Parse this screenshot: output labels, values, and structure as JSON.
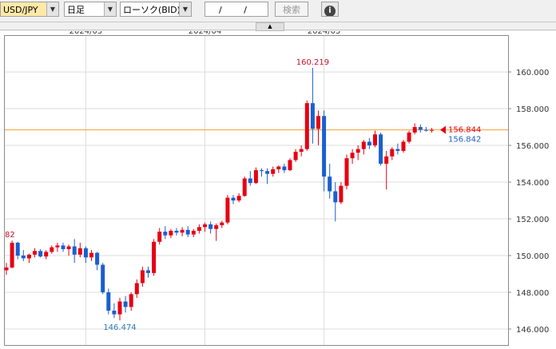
{
  "toolbar": {
    "symbol": "USD/JPY",
    "period": "日足",
    "chart_kind": "ローソク(BID)",
    "date": "/ /",
    "search": "検索",
    "info": "i"
  },
  "chart_data": {
    "type": "candlestick",
    "categories": [
      null,
      null,
      null,
      null,
      null,
      null,
      null,
      null,
      null,
      null,
      null,
      null,
      null,
      null,
      "2024/03",
      null,
      null,
      null,
      null,
      null,
      null,
      null,
      null,
      null,
      null,
      null,
      null,
      null,
      null,
      null,
      null,
      null,
      null,
      null,
      null,
      "2024/04",
      null,
      null,
      null,
      null,
      null,
      null,
      null,
      null,
      null,
      null,
      null,
      null,
      null,
      null,
      null,
      null,
      null,
      null,
      null,
      null,
      "2024/05",
      null,
      null,
      null,
      null,
      null,
      null,
      null,
      null,
      null,
      null,
      null,
      null,
      null,
      null,
      null,
      null,
      null,
      null,
      null
    ],
    "open": [
      149.2,
      149.35,
      150.7,
      150.0,
      149.85,
      150.05,
      150.25,
      149.95,
      150.2,
      150.45,
      150.55,
      150.35,
      150.5,
      150.05,
      150.4,
      149.9,
      150.15,
      149.5,
      148.0,
      147.0,
      146.8,
      147.5,
      147.2,
      147.9,
      148.5,
      149.2,
      149.05,
      150.75,
      151.3,
      151.1,
      151.35,
      151.25,
      151.4,
      151.15,
      151.35,
      151.55,
      151.7,
      151.45,
      151.65,
      151.8,
      153.15,
      153.0,
      153.25,
      154.2,
      153.95,
      154.65,
      154.6,
      154.45,
      154.7,
      154.85,
      154.65,
      155.2,
      155.65,
      155.8,
      158.3,
      156.9,
      157.6,
      154.3,
      153.5,
      152.9,
      153.8,
      155.3,
      155.6,
      155.8,
      156.2,
      156.0,
      156.6,
      155.0,
      155.4,
      155.8,
      155.7,
      156.2,
      156.7,
      157.0,
      156.85,
      156.8
    ],
    "high": [
      149.6,
      150.82,
      150.75,
      150.3,
      150.1,
      150.4,
      150.35,
      150.3,
      150.55,
      150.7,
      150.7,
      150.6,
      150.9,
      150.7,
      150.5,
      150.3,
      150.2,
      149.6,
      148.2,
      147.4,
      147.7,
      147.8,
      148.0,
      148.7,
      149.4,
      149.4,
      150.9,
      151.5,
      151.6,
      151.45,
      151.5,
      151.55,
      151.6,
      151.45,
      151.7,
      151.8,
      151.85,
      151.75,
      151.9,
      153.3,
      153.3,
      153.4,
      154.3,
      154.6,
      154.8,
      154.75,
      154.75,
      154.85,
      154.9,
      155.0,
      155.3,
      155.8,
      156.0,
      158.45,
      160.219,
      157.9,
      157.9,
      155.0,
      154.0,
      154.0,
      155.5,
      155.8,
      156.0,
      156.3,
      156.4,
      156.8,
      156.7,
      155.7,
      155.9,
      156.1,
      156.3,
      156.8,
      157.2,
      157.15,
      157.0,
      156.95
    ],
    "low": [
      148.95,
      149.3,
      149.8,
      149.7,
      149.6,
      149.9,
      149.9,
      149.8,
      150.1,
      150.2,
      150.2,
      150.0,
      149.6,
      149.9,
      149.6,
      149.7,
      149.2,
      147.9,
      146.8,
      146.6,
      146.474,
      146.9,
      147.0,
      147.7,
      148.3,
      148.8,
      148.9,
      150.6,
      150.9,
      150.95,
      151.1,
      151.05,
      151.0,
      151.0,
      151.2,
      151.3,
      151.2,
      150.8,
      151.5,
      151.7,
      152.8,
      152.9,
      153.2,
      153.8,
      153.9,
      154.3,
      153.9,
      154.3,
      154.5,
      154.5,
      154.6,
      155.1,
      155.4,
      155.7,
      156.1,
      156.0,
      153.5,
      153.1,
      151.86,
      152.8,
      153.6,
      155.0,
      155.2,
      155.5,
      155.8,
      155.9,
      154.9,
      153.6,
      155.2,
      155.5,
      155.6,
      156.1,
      156.6,
      156.7,
      156.75,
      156.7
    ],
    "close": [
      149.35,
      150.7,
      150.0,
      149.85,
      150.05,
      150.25,
      149.95,
      150.2,
      150.45,
      150.55,
      150.35,
      150.5,
      150.05,
      150.4,
      149.9,
      150.15,
      149.5,
      148.0,
      147.0,
      146.8,
      147.5,
      147.2,
      147.9,
      148.5,
      149.2,
      149.05,
      150.75,
      151.3,
      151.1,
      151.35,
      151.25,
      151.4,
      151.15,
      151.35,
      151.55,
      151.7,
      151.45,
      151.65,
      151.8,
      153.15,
      153.0,
      153.25,
      154.2,
      153.95,
      154.65,
      154.6,
      154.45,
      154.7,
      154.85,
      154.65,
      155.2,
      155.65,
      155.8,
      158.3,
      156.9,
      157.6,
      154.3,
      153.5,
      152.9,
      153.8,
      155.3,
      155.6,
      155.8,
      156.2,
      156.0,
      156.6,
      155.0,
      155.4,
      155.8,
      155.7,
      156.2,
      156.7,
      157.0,
      156.85,
      156.8,
      156.844
    ],
    "high_labels": [
      null,
      "82",
      null,
      null,
      null,
      null,
      null,
      null,
      null,
      null,
      null,
      null,
      null,
      null,
      null,
      null,
      null,
      null,
      null,
      null,
      null,
      null,
      null,
      null,
      null,
      null,
      null,
      null,
      null,
      null,
      null,
      null,
      null,
      null,
      null,
      null,
      null,
      null,
      null,
      null,
      null,
      null,
      null,
      null,
      null,
      null,
      null,
      null,
      null,
      null,
      null,
      null,
      null,
      null,
      "160.219",
      null,
      null,
      null,
      null,
      null,
      null,
      null,
      null,
      null,
      null,
      null,
      null,
      null,
      null,
      null,
      null,
      null,
      null,
      null,
      null,
      null
    ],
    "up_color": "#e60012",
    "down_color": "#1a5fd0",
    "ylim": [
      145.13,
      161.96
    ],
    "yticks": [
      {
        "value": 146,
        "label": "146.000"
      },
      {
        "value": 148,
        "label": "148.000"
      },
      {
        "value": 150,
        "label": "150.000"
      },
      {
        "value": 152,
        "label": "152.000"
      },
      {
        "value": 154,
        "label": "154.000"
      },
      {
        "value": 156,
        "label": "156.000"
      },
      {
        "value": 158,
        "label": "158.000"
      },
      {
        "value": 160,
        "label": "160.000"
      }
    ],
    "grid": true,
    "price_line": {
      "value": 156.844,
      "color": "#f0a030"
    },
    "last_prices": [
      {
        "value": 156.844,
        "color": "#e60012"
      },
      {
        "value": 156.842,
        "color": "#1a5fd0"
      }
    ]
  }
}
